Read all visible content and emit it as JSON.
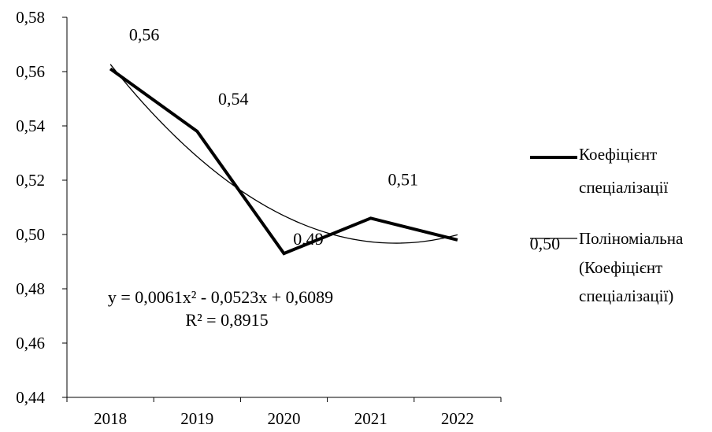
{
  "chart_data": {
    "type": "line",
    "categories": [
      "2018",
      "2019",
      "2020",
      "2021",
      "2022"
    ],
    "ylim": [
      0.44,
      0.58
    ],
    "yticks": [
      "0,44",
      "0,46",
      "0,48",
      "0,50",
      "0,52",
      "0,54",
      "0,56",
      "0,58"
    ],
    "grid": false,
    "legend_position": "right",
    "series": [
      {
        "name": "Коефіцієнт спеціалізації",
        "values": [
          0.561,
          0.538,
          0.493,
          0.506,
          0.498
        ],
        "data_labels": [
          "0,56",
          "0,54",
          "0,49",
          "0,51",
          "0,50"
        ],
        "color": "#000000",
        "style": "thick"
      }
    ],
    "trendline": {
      "name": "Поліноміальна (Коефіцієнт спеціалізації)",
      "type": "polynomial",
      "order": 2,
      "coefficients": [
        0.0061,
        -0.0523,
        0.6089
      ],
      "equation": "y = 0,0061x² - 0,0523x + 0,6089",
      "r_squared": "R² = 0,8915",
      "color": "#000000",
      "style": "thin"
    },
    "legend": [
      {
        "lines": [
          "Коефіцієнт",
          "спеціалізації"
        ],
        "style": "thick"
      },
      {
        "lines": [
          "Поліноміальна",
          "(Коефіцієнт",
          "спеціалізації)"
        ],
        "style": "thin"
      }
    ]
  }
}
